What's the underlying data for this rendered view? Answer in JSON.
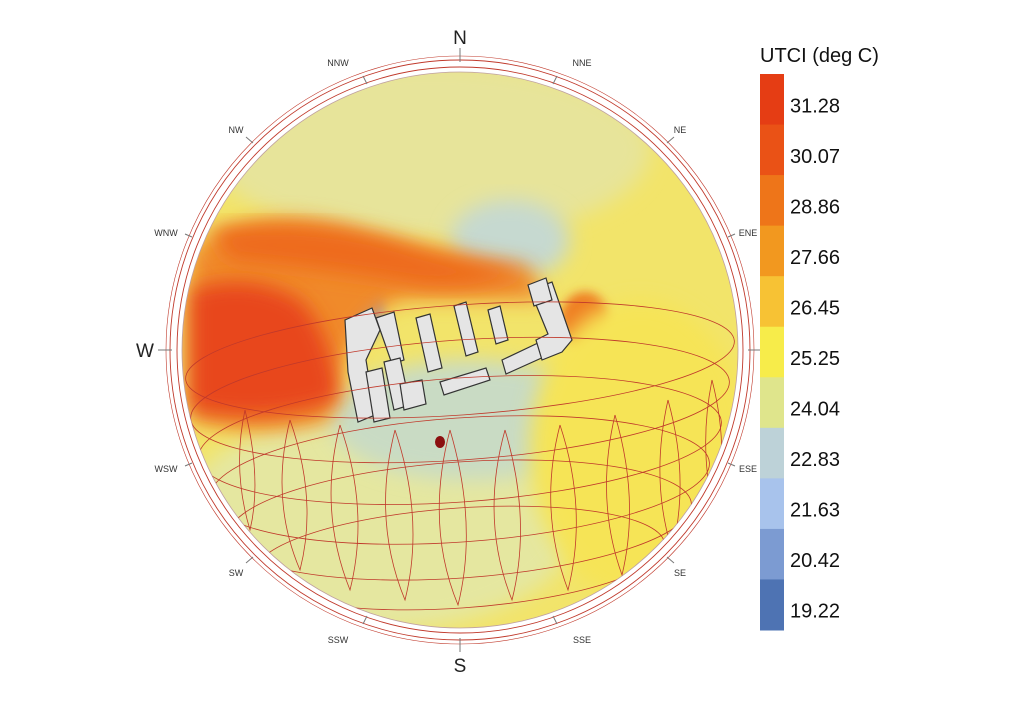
{
  "compass": {
    "major": [
      "N",
      "W",
      "S"
    ],
    "minor": [
      "NNW",
      "NNE",
      "NW",
      "NE",
      "WNW",
      "ENE",
      "WSW",
      "ESE",
      "SW",
      "SE",
      "SSW",
      "SSE"
    ]
  },
  "legend": {
    "title": "UTCI (deg C)",
    "labels": [
      "31.28",
      "30.07",
      "28.86",
      "27.66",
      "26.45",
      "25.25",
      "24.04",
      "22.83",
      "21.63",
      "20.42",
      "19.22"
    ],
    "colors": [
      "#e53d14",
      "#ea5216",
      "#ee7519",
      "#f2981f",
      "#f7c234",
      "#f7ec4a",
      "#dfe58c",
      "#bdd2d8",
      "#a8c3ec",
      "#7c9bd2",
      "#4e73b3"
    ]
  },
  "colors": {
    "hot": "#e8461a",
    "warm": "#f5a623",
    "neutral": "#f5e85a",
    "cool": "#bcd3d6",
    "sunpath": "#c0392b",
    "sphere_base": "#f3e56e"
  }
}
